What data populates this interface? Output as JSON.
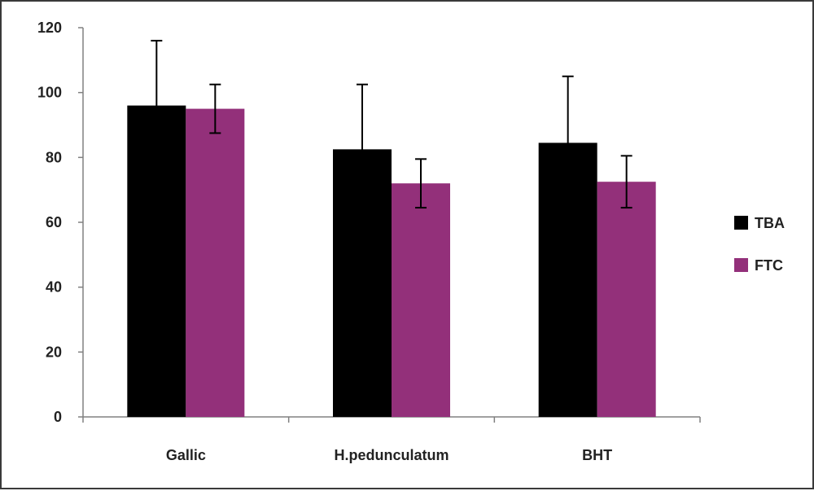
{
  "chart_data": {
    "type": "bar",
    "title": "",
    "xlabel": "",
    "ylabel": "",
    "categories": [
      "Gallic",
      "H.pedunculatum",
      "BHT"
    ],
    "series": [
      {
        "name": "TBA",
        "color": "#000000",
        "values": [
          96,
          82.5,
          84.5
        ],
        "error": [
          20,
          20,
          20.5
        ]
      },
      {
        "name": "FTC",
        "color": "#93307A",
        "values": [
          95,
          72,
          72.5
        ],
        "error": [
          7.5,
          7.5,
          8
        ]
      }
    ],
    "ylim": [
      0,
      120
    ],
    "yticks": [
      0,
      20,
      40,
      60,
      80,
      100,
      120
    ],
    "ytick_labels": [
      "0",
      "20",
      "40",
      "60",
      "80",
      "100",
      "120"
    ],
    "grid": false,
    "legend_position": "right"
  }
}
